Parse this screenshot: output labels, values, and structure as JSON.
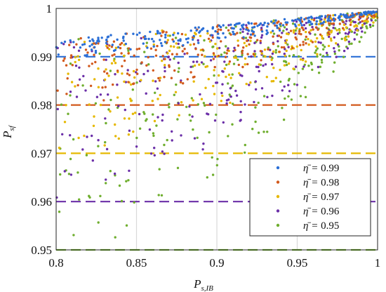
{
  "chart_data": {
    "type": "scatter",
    "title": "",
    "xlabel": "P",
    "xlabel_sub": "s,IB",
    "ylabel": "P",
    "ylabel_sub": "sf",
    "xlim": [
      0.8,
      1.0
    ],
    "ylim": [
      0.95,
      1.0
    ],
    "x_ticks": [
      0.8,
      0.85,
      0.9,
      0.95,
      1.0
    ],
    "x_tick_labels": [
      "0.8",
      "0.85",
      "0.9",
      "0.95",
      "1"
    ],
    "y_ticks": [
      0.95,
      0.96,
      0.97,
      0.98,
      0.99,
      1.0
    ],
    "y_tick_labels": [
      "0.95",
      "0.96",
      "0.97",
      "0.98",
      "0.99",
      "1"
    ],
    "grid": true,
    "legend_position": "bottom-right",
    "series": [
      {
        "name": "η̄ = 0.99",
        "eta": 0.99,
        "color": "#2b6fd6",
        "threshold": 0.99,
        "points": 240
      },
      {
        "name": "η̄ = 0.98",
        "eta": 0.98,
        "color": "#d2591c",
        "threshold": 0.98,
        "points": 240
      },
      {
        "name": "η̄ = 0.97",
        "eta": 0.97,
        "color": "#e6b800",
        "threshold": 0.97,
        "points": 240
      },
      {
        "name": "η̄ = 0.96",
        "eta": 0.96,
        "color": "#6b2fa8",
        "threshold": 0.96,
        "points": 240
      },
      {
        "name": "η̄ = 0.95",
        "eta": 0.95,
        "color": "#6fae2e",
        "threshold": 0.95,
        "points": 260
      }
    ],
    "legend_labels": [
      {
        "prefix": "η̄ = ",
        "value": "0.99"
      },
      {
        "prefix": "η̄ = ",
        "value": "0.98"
      },
      {
        "prefix": "η̄ = ",
        "value": "0.97"
      },
      {
        "prefix": "η̄ = ",
        "value": "0.96"
      },
      {
        "prefix": "η̄ = ",
        "value": "0.95"
      }
    ]
  }
}
